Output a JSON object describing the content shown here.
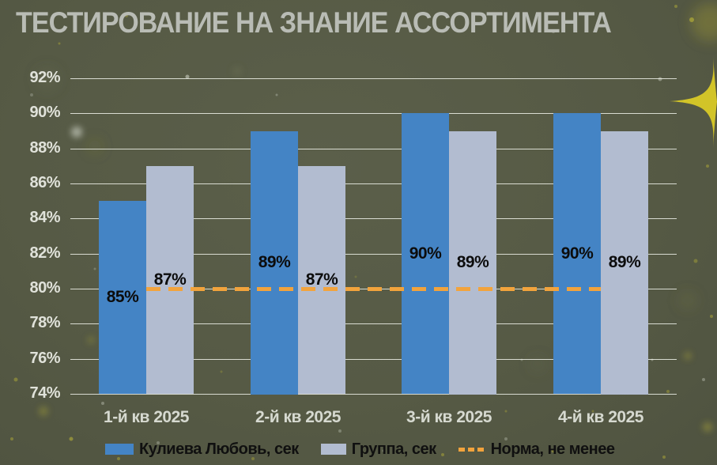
{
  "header": {
    "title": "ТЕСТИРОВАНИЕ НА ЗНАНИЕ АССОРТИМЕНТА"
  },
  "colors": {
    "background": "#565a45",
    "title_text": "#b9bcb5",
    "axis_text": "#e0e2da",
    "gridline": "#f0f2ea",
    "bar_primary": "#4484c5",
    "bar_secondary": "#b2bcd0",
    "norm_orange": "#f2a33c",
    "data_label": "#0c0c0c",
    "legend_text": "#101010",
    "star_yellow": "#d2c428"
  },
  "chart_data": {
    "type": "bar",
    "title": "ТЕСТИРОВАНИЕ НА ЗНАНИЕ АССОРТИМЕНТА",
    "categories": [
      "1-й кв 2025",
      "2-й кв 2025",
      "3-й кв 2025",
      "4-й кв 2025"
    ],
    "series": [
      {
        "name": "Кулиева Любовь, сек",
        "values": [
          85,
          89,
          90,
          90
        ],
        "color": "#4484c5"
      },
      {
        "name": "Группа, сек",
        "values": [
          87,
          87,
          89,
          89
        ],
        "color": "#b2bcd0"
      }
    ],
    "norm_line": {
      "label": "Норма, не менее",
      "value": 80,
      "color": "#f2a33c",
      "style": "dashed"
    },
    "xlabel": "",
    "ylabel": "",
    "ylim": [
      74,
      92
    ],
    "ytick_step": 2,
    "ytick_labels": [
      "92%",
      "90%",
      "88%",
      "86%",
      "84%",
      "82%",
      "80%",
      "78%",
      "76%",
      "74%"
    ],
    "yticks": [
      92,
      90,
      88,
      86,
      84,
      82,
      80,
      78,
      76,
      74
    ],
    "data_label_suffix": "%",
    "grid": true,
    "legend_position": "bottom"
  },
  "legend": {
    "items": [
      {
        "label": "Кулиева Любовь, сек",
        "swatch": "bar-primary",
        "color": "#4484c5"
      },
      {
        "label": "Группа, сек",
        "swatch": "bar-secondary",
        "color": "#b2bcd0"
      },
      {
        "label": "Норма, не менее",
        "swatch": "dashed-line",
        "color": "#f2a33c"
      }
    ]
  }
}
